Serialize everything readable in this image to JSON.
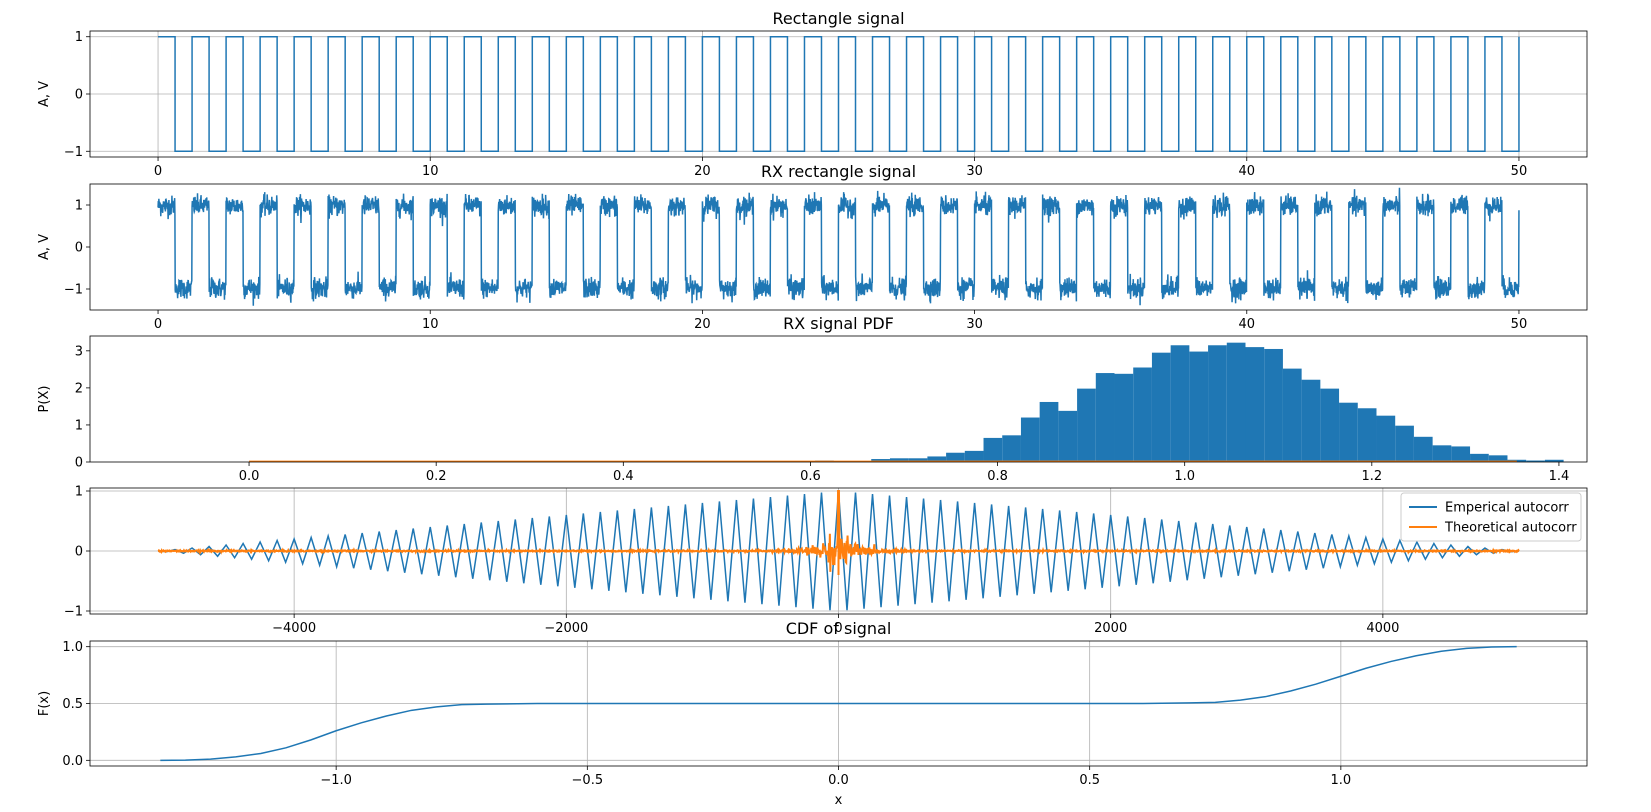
{
  "colors": {
    "blue": "#1f77b4",
    "orange": "#ff7f0e",
    "grid": "#b0b0b0",
    "axis": "#000000"
  },
  "chart_data": [
    {
      "id": "rect",
      "type": "line",
      "title": "Rectangle signal",
      "xlabel": "",
      "ylabel": "A, V",
      "xlim": [
        -2.5,
        52.5
      ],
      "ylim": [
        -1.1,
        1.1
      ],
      "xticks": [
        0,
        10,
        20,
        30,
        40,
        50
      ],
      "xtick_labels": [
        "0",
        "10",
        "20",
        "30",
        "40",
        "50"
      ],
      "yticks": [
        -1,
        0,
        1
      ],
      "ytick_labels": [
        "−1",
        "0",
        "1"
      ],
      "grid": true,
      "signal": {
        "kind": "square",
        "period": 1.25,
        "duty": 0.5,
        "amplitude": 1,
        "t_start": 0,
        "t_end": 50,
        "noise": 0
      }
    },
    {
      "id": "rx",
      "type": "line",
      "title": "RX rectangle signal",
      "xlabel": "",
      "ylabel": "A, V",
      "xlim": [
        -2.5,
        52.5
      ],
      "ylim": [
        -1.5,
        1.5
      ],
      "xticks": [
        0,
        10,
        20,
        30,
        40,
        50
      ],
      "xtick_labels": [
        "0",
        "10",
        "20",
        "30",
        "40",
        "50"
      ],
      "yticks": [
        -1,
        0,
        1
      ],
      "ytick_labels": [
        "−1",
        "0",
        "1"
      ],
      "grid": false,
      "signal": {
        "kind": "square",
        "period": 1.25,
        "duty": 0.5,
        "amplitude": 1,
        "t_start": 0,
        "t_end": 50,
        "noise": 0.12
      }
    },
    {
      "id": "pdf",
      "type": "bar",
      "title": "RX signal PDF",
      "xlabel": "",
      "ylabel": "P(X)",
      "xlim": [
        -0.17,
        1.43
      ],
      "ylim": [
        0,
        3.4
      ],
      "xticks": [
        0.0,
        0.2,
        0.4,
        0.6,
        0.8,
        1.0,
        1.2,
        1.4
      ],
      "xtick_labels": [
        "0.0",
        "0.2",
        "0.4",
        "0.6",
        "0.8",
        "1.0",
        "1.2",
        "1.4"
      ],
      "yticks": [
        0,
        1,
        2,
        3
      ],
      "ytick_labels": [
        "0",
        "1",
        "2",
        "3"
      ],
      "grid": false,
      "bin_start": 0.605,
      "bin_width": 0.02,
      "values": [
        0.04,
        0.02,
        0.0,
        0.08,
        0.1,
        0.1,
        0.15,
        0.25,
        0.3,
        0.65,
        0.72,
        1.2,
        1.62,
        1.38,
        1.98,
        2.4,
        2.38,
        2.55,
        2.95,
        3.15,
        2.98,
        3.15,
        3.22,
        3.1,
        3.05,
        2.52,
        2.22,
        1.98,
        1.6,
        1.45,
        1.25,
        0.98,
        0.68,
        0.45,
        0.42,
        0.22,
        0.18,
        0.06,
        0.04,
        0.06
      ],
      "overlay": {
        "name": "",
        "x": [
          0.0,
          1.355
        ],
        "y": [
          0.01,
          0.01
        ]
      }
    },
    {
      "id": "autocorr",
      "type": "line",
      "title": "",
      "xlabel": "",
      "ylabel": "",
      "xlim": [
        -5500,
        5500
      ],
      "ylim": [
        -1.05,
        1.05
      ],
      "xticks": [
        -4000,
        -2000,
        0,
        2000,
        4000
      ],
      "xtick_labels": [
        "−4000",
        "−2000",
        "0",
        "2000",
        "4000"
      ],
      "yticks": [
        -1,
        0,
        1
      ],
      "ytick_labels": [
        "−1",
        "0",
        "1"
      ],
      "grid": true,
      "legend_position": "top-right",
      "series": [
        {
          "name": "Emperical autocorr",
          "kind": "triangle-envelope",
          "lag_range": [
            -5000,
            5000
          ],
          "period": 125,
          "peak": 1
        },
        {
          "name": "Theoretical autocorr",
          "kind": "noise-decay",
          "lag_range": [
            -5000,
            5000
          ],
          "peak": 1,
          "min": -0.4
        }
      ]
    },
    {
      "id": "cdf",
      "type": "line",
      "title": "CDF of signal",
      "xlabel": "x",
      "ylabel": "F(x)",
      "xlim": [
        -1.49,
        1.49
      ],
      "ylim": [
        -0.05,
        1.05
      ],
      "xticks": [
        -1.0,
        -0.5,
        0.0,
        0.5,
        1.0
      ],
      "xtick_labels": [
        "−1.0",
        "−0.5",
        "0.0",
        "0.5",
        "1.0"
      ],
      "yticks": [
        0.0,
        0.5,
        1.0
      ],
      "ytick_labels": [
        "0.0",
        "0.5",
        "1.0"
      ],
      "grid": true,
      "x": [
        -1.35,
        -1.3,
        -1.25,
        -1.2,
        -1.15,
        -1.1,
        -1.05,
        -1.0,
        -0.95,
        -0.9,
        -0.85,
        -0.8,
        -0.75,
        -0.7,
        -0.6,
        -0.4,
        -0.2,
        0.0,
        0.2,
        0.4,
        0.6,
        0.7,
        0.75,
        0.8,
        0.85,
        0.9,
        0.95,
        1.0,
        1.05,
        1.1,
        1.15,
        1.2,
        1.25,
        1.3,
        1.35
      ],
      "y": [
        0.0,
        0.002,
        0.01,
        0.03,
        0.06,
        0.11,
        0.18,
        0.26,
        0.33,
        0.39,
        0.44,
        0.47,
        0.49,
        0.495,
        0.5,
        0.5,
        0.5,
        0.5,
        0.5,
        0.5,
        0.5,
        0.505,
        0.51,
        0.53,
        0.56,
        0.61,
        0.67,
        0.74,
        0.81,
        0.87,
        0.92,
        0.96,
        0.985,
        0.997,
        1.0
      ]
    }
  ]
}
